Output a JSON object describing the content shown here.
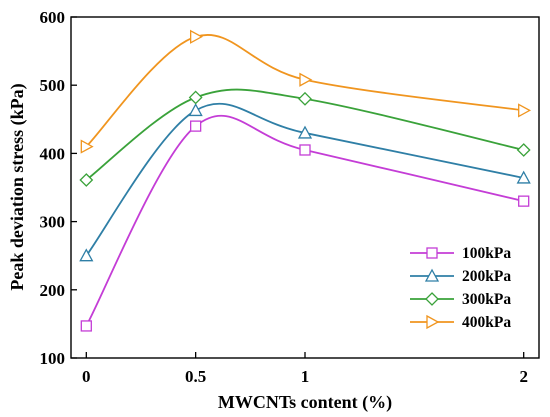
{
  "chart_data": {
    "type": "line",
    "xlabel": "MWCNTs content (%)",
    "ylabel": "Peak deviation stress (kPa)",
    "xlim": [
      -0.07,
      2.07
    ],
    "ylim": [
      100,
      600
    ],
    "x_ticks": [
      0,
      0.5,
      1,
      2
    ],
    "x_tick_labels": [
      "0",
      "0.5",
      "1",
      "2"
    ],
    "y_ticks": [
      100,
      200,
      300,
      400,
      500,
      600
    ],
    "y_tick_labels": [
      "100",
      "200",
      "300",
      "400",
      "500",
      "600"
    ],
    "legend_position": "bottom-right",
    "line_style": "smooth spline",
    "series": [
      {
        "name": "100kPa",
        "marker": "square",
        "color": "#c43dd6",
        "x": [
          0,
          0.5,
          1,
          2
        ],
        "y": [
          147,
          440,
          405,
          330
        ]
      },
      {
        "name": "200kPa",
        "marker": "triangle-up",
        "color": "#2f7fa6",
        "x": [
          0,
          0.5,
          1,
          2
        ],
        "y": [
          250,
          463,
          430,
          364
        ]
      },
      {
        "name": "300kPa",
        "marker": "diamond",
        "color": "#3aa23a",
        "x": [
          0,
          0.5,
          1,
          2
        ],
        "y": [
          361,
          482,
          480,
          405
        ]
      },
      {
        "name": "400kPa",
        "marker": "triangle-right",
        "color": "#f0951f",
        "x": [
          0,
          0.5,
          1,
          2
        ],
        "y": [
          410,
          571,
          508,
          463
        ]
      }
    ]
  }
}
